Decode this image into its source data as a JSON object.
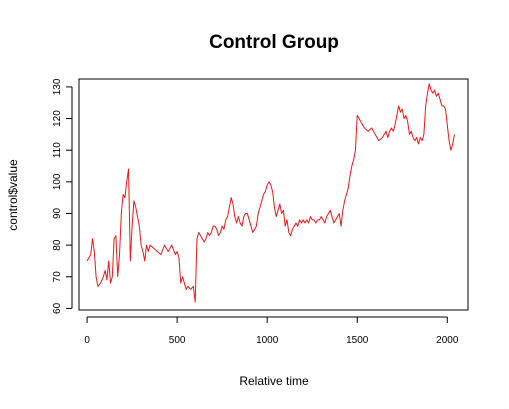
{
  "chart_data": {
    "type": "line",
    "title": "Control Group",
    "xlabel": "Relative time",
    "ylabel": "control$value",
    "xlim": [
      -45,
      2115
    ],
    "ylim": [
      59.5,
      132.5
    ],
    "x_ticks": [
      0,
      500,
      1000,
      1500,
      2000
    ],
    "y_ticks": [
      60,
      70,
      80,
      90,
      100,
      110,
      120,
      130
    ],
    "grid": false,
    "series": [
      {
        "color": "#e41a1c",
        "points": [
          [
            0,
            75
          ],
          [
            10,
            76
          ],
          [
            20,
            77
          ],
          [
            30,
            82
          ],
          [
            40,
            78
          ],
          [
            50,
            70
          ],
          [
            60,
            67
          ],
          [
            75,
            68
          ],
          [
            90,
            70
          ],
          [
            100,
            72
          ],
          [
            110,
            69
          ],
          [
            120,
            75
          ],
          [
            130,
            68
          ],
          [
            140,
            70
          ],
          [
            150,
            82
          ],
          [
            160,
            83
          ],
          [
            170,
            70
          ],
          [
            180,
            77
          ],
          [
            190,
            90
          ],
          [
            200,
            96
          ],
          [
            210,
            95
          ],
          [
            220,
            100
          ],
          [
            230,
            104
          ],
          [
            240,
            75
          ],
          [
            250,
            86
          ],
          [
            260,
            94
          ],
          [
            270,
            92
          ],
          [
            280,
            89
          ],
          [
            290,
            86
          ],
          [
            300,
            80
          ],
          [
            310,
            78
          ],
          [
            320,
            75
          ],
          [
            330,
            80
          ],
          [
            340,
            78
          ],
          [
            350,
            80
          ],
          [
            370,
            79
          ],
          [
            390,
            78
          ],
          [
            410,
            77
          ],
          [
            430,
            80
          ],
          [
            450,
            78
          ],
          [
            470,
            80
          ],
          [
            490,
            77
          ],
          [
            500,
            78
          ],
          [
            510,
            76
          ],
          [
            520,
            68
          ],
          [
            530,
            70
          ],
          [
            540,
            68
          ],
          [
            550,
            66
          ],
          [
            560,
            67
          ],
          [
            575,
            66
          ],
          [
            590,
            67
          ],
          [
            600,
            62
          ],
          [
            610,
            82
          ],
          [
            620,
            84
          ],
          [
            630,
            83
          ],
          [
            640,
            82
          ],
          [
            650,
            81
          ],
          [
            660,
            82
          ],
          [
            670,
            84
          ],
          [
            680,
            83
          ],
          [
            690,
            84
          ],
          [
            700,
            86
          ],
          [
            710,
            86
          ],
          [
            720,
            85
          ],
          [
            730,
            83
          ],
          [
            740,
            84
          ],
          [
            750,
            86
          ],
          [
            760,
            85
          ],
          [
            770,
            88
          ],
          [
            780,
            89
          ],
          [
            790,
            92
          ],
          [
            800,
            95
          ],
          [
            810,
            93
          ],
          [
            820,
            89
          ],
          [
            830,
            87
          ],
          [
            840,
            89
          ],
          [
            850,
            87
          ],
          [
            860,
            86
          ],
          [
            870,
            89
          ],
          [
            880,
            90
          ],
          [
            890,
            90
          ],
          [
            900,
            88
          ],
          [
            910,
            86
          ],
          [
            920,
            84
          ],
          [
            930,
            85
          ],
          [
            940,
            86
          ],
          [
            950,
            90
          ],
          [
            960,
            92
          ],
          [
            970,
            94
          ],
          [
            980,
            96
          ],
          [
            990,
            97
          ],
          [
            1000,
            99
          ],
          [
            1010,
            100
          ],
          [
            1020,
            99
          ],
          [
            1030,
            97
          ],
          [
            1040,
            92
          ],
          [
            1050,
            89
          ],
          [
            1060,
            91
          ],
          [
            1070,
            93
          ],
          [
            1080,
            90
          ],
          [
            1090,
            91
          ],
          [
            1100,
            86
          ],
          [
            1110,
            88
          ],
          [
            1120,
            84
          ],
          [
            1130,
            83
          ],
          [
            1140,
            85
          ],
          [
            1150,
            86
          ],
          [
            1160,
            87
          ],
          [
            1170,
            86
          ],
          [
            1180,
            88
          ],
          [
            1190,
            87
          ],
          [
            1200,
            88
          ],
          [
            1210,
            87
          ],
          [
            1220,
            88
          ],
          [
            1230,
            87
          ],
          [
            1240,
            89
          ],
          [
            1250,
            88
          ],
          [
            1260,
            88
          ],
          [
            1270,
            87
          ],
          [
            1280,
            88
          ],
          [
            1290,
            88
          ],
          [
            1300,
            89
          ],
          [
            1310,
            88
          ],
          [
            1320,
            87
          ],
          [
            1330,
            89
          ],
          [
            1340,
            90
          ],
          [
            1350,
            91
          ],
          [
            1360,
            89
          ],
          [
            1370,
            87
          ],
          [
            1380,
            88
          ],
          [
            1390,
            89
          ],
          [
            1400,
            90
          ],
          [
            1410,
            86
          ],
          [
            1420,
            91
          ],
          [
            1430,
            94
          ],
          [
            1440,
            96
          ],
          [
            1450,
            98
          ],
          [
            1460,
            102
          ],
          [
            1470,
            105
          ],
          [
            1480,
            107
          ],
          [
            1490,
            110
          ],
          [
            1500,
            121
          ],
          [
            1510,
            120
          ],
          [
            1520,
            119
          ],
          [
            1530,
            118
          ],
          [
            1540,
            117
          ],
          [
            1560,
            116
          ],
          [
            1580,
            117
          ],
          [
            1600,
            115
          ],
          [
            1620,
            113
          ],
          [
            1640,
            114
          ],
          [
            1660,
            116
          ],
          [
            1670,
            114
          ],
          [
            1680,
            116
          ],
          [
            1690,
            117
          ],
          [
            1700,
            116
          ],
          [
            1710,
            118
          ],
          [
            1720,
            121
          ],
          [
            1730,
            124
          ],
          [
            1740,
            122
          ],
          [
            1750,
            123
          ],
          [
            1760,
            120
          ],
          [
            1770,
            121
          ],
          [
            1780,
            119
          ],
          [
            1790,
            115
          ],
          [
            1800,
            116
          ],
          [
            1810,
            114
          ],
          [
            1820,
            113
          ],
          [
            1830,
            114
          ],
          [
            1840,
            112
          ],
          [
            1850,
            114
          ],
          [
            1860,
            113
          ],
          [
            1870,
            115
          ],
          [
            1880,
            124
          ],
          [
            1890,
            128
          ],
          [
            1900,
            131
          ],
          [
            1910,
            129
          ],
          [
            1920,
            128
          ],
          [
            1930,
            129
          ],
          [
            1940,
            127
          ],
          [
            1950,
            128
          ],
          [
            1960,
            126
          ],
          [
            1970,
            124
          ],
          [
            1980,
            124
          ],
          [
            1990,
            123
          ],
          [
            2000,
            118
          ],
          [
            2010,
            113
          ],
          [
            2020,
            110
          ],
          [
            2030,
            112
          ],
          [
            2040,
            115
          ]
        ]
      }
    ]
  }
}
